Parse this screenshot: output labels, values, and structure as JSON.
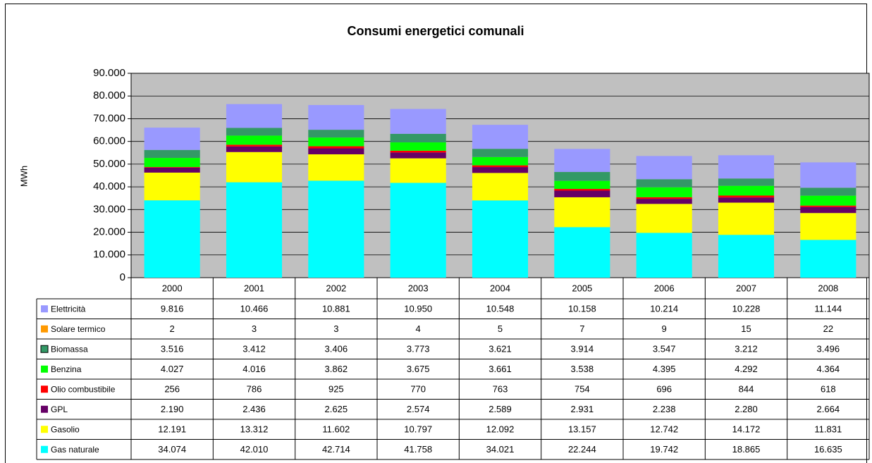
{
  "chart_data": {
    "type": "stacked_bar",
    "title": "Consumi energetici comunali",
    "y_label": "MWh",
    "categories": [
      "2000",
      "2001",
      "2002",
      "2003",
      "2004",
      "2005",
      "2006",
      "2007",
      "2008"
    ],
    "series": [
      {
        "name": "Elettricità",
        "color": "#9999ff",
        "values": [
          9816,
          10466,
          10881,
          10950,
          10548,
          10158,
          10214,
          10228,
          11144
        ],
        "value_labels": [
          "9.816",
          "10.466",
          "10.881",
          "10.950",
          "10.548",
          "10.158",
          "10.214",
          "10.228",
          "11.144"
        ]
      },
      {
        "name": "Solare termico",
        "color": "#ff9900",
        "values": [
          2,
          3,
          3,
          4,
          5,
          7,
          9,
          15,
          22
        ]
      },
      {
        "name": "Biomassa",
        "color": "#339966",
        "values": [
          3516,
          3412,
          3406,
          3773,
          3621,
          3914,
          3547,
          3212,
          3496
        ],
        "value_labels": [
          "3.516",
          "3.412",
          "3.406",
          "3.773",
          "3.621",
          "3.914",
          "3.547",
          "3.212",
          "3.496"
        ]
      },
      {
        "name": "Benzina",
        "color": "#00ff00",
        "values": [
          4027,
          4016,
          3862,
          3675,
          3661,
          3538,
          4395,
          4292,
          4364
        ],
        "value_labels": [
          "4.027",
          "4.016",
          "3.862",
          "3.675",
          "3.661",
          "3.538",
          "4.395",
          "4.292",
          "4.364"
        ]
      },
      {
        "name": "Olio combustibile",
        "color": "#ff0000",
        "values": [
          256,
          786,
          925,
          770,
          763,
          754,
          696,
          844,
          618
        ]
      },
      {
        "name": "GPL",
        "color": "#660066",
        "values": [
          2190,
          2436,
          2625,
          2574,
          2589,
          2931,
          2238,
          2280,
          2664
        ],
        "value_labels": [
          "2.190",
          "2.436",
          "2.625",
          "2.574",
          "2.589",
          "2.931",
          "2.238",
          "2.280",
          "2.664"
        ]
      },
      {
        "name": "Gasolio",
        "color": "#ffff00",
        "values": [
          12191,
          13312,
          11602,
          10797,
          12092,
          13157,
          12742,
          14172,
          11831
        ],
        "value_labels": [
          "12.191",
          "13.312",
          "11.602",
          "10.797",
          "12.092",
          "13.157",
          "12.742",
          "14.172",
          "11.831"
        ]
      },
      {
        "name": "Gas naturale",
        "color": "#00ffff",
        "values": [
          34074,
          42010,
          42714,
          41758,
          34021,
          22244,
          19742,
          18865,
          16635
        ],
        "value_labels": [
          "34.074",
          "42.010",
          "42.714",
          "41.758",
          "34.021",
          "22.244",
          "19.742",
          "18.865",
          "16.635"
        ]
      }
    ],
    "ylim": [
      0,
      90000
    ],
    "yticks": [
      0,
      {
        "value": 10000,
        "label": "10.000"
      },
      {
        "value": 20000,
        "label": "20.000"
      },
      {
        "value": 30000,
        "label": "30.000"
      },
      {
        "value": 40000,
        "label": "40.000"
      },
      {
        "value": 50000,
        "label": "50.000"
      },
      {
        "value": 60000,
        "label": "60.000"
      },
      {
        "value": 70000,
        "label": "70.000"
      },
      {
        "value": 80000,
        "label": "80.000"
      },
      {
        "value": 90000,
        "label": "90.000"
      }
    ],
    "grid": true,
    "plot_background": "#c0c0c0"
  }
}
